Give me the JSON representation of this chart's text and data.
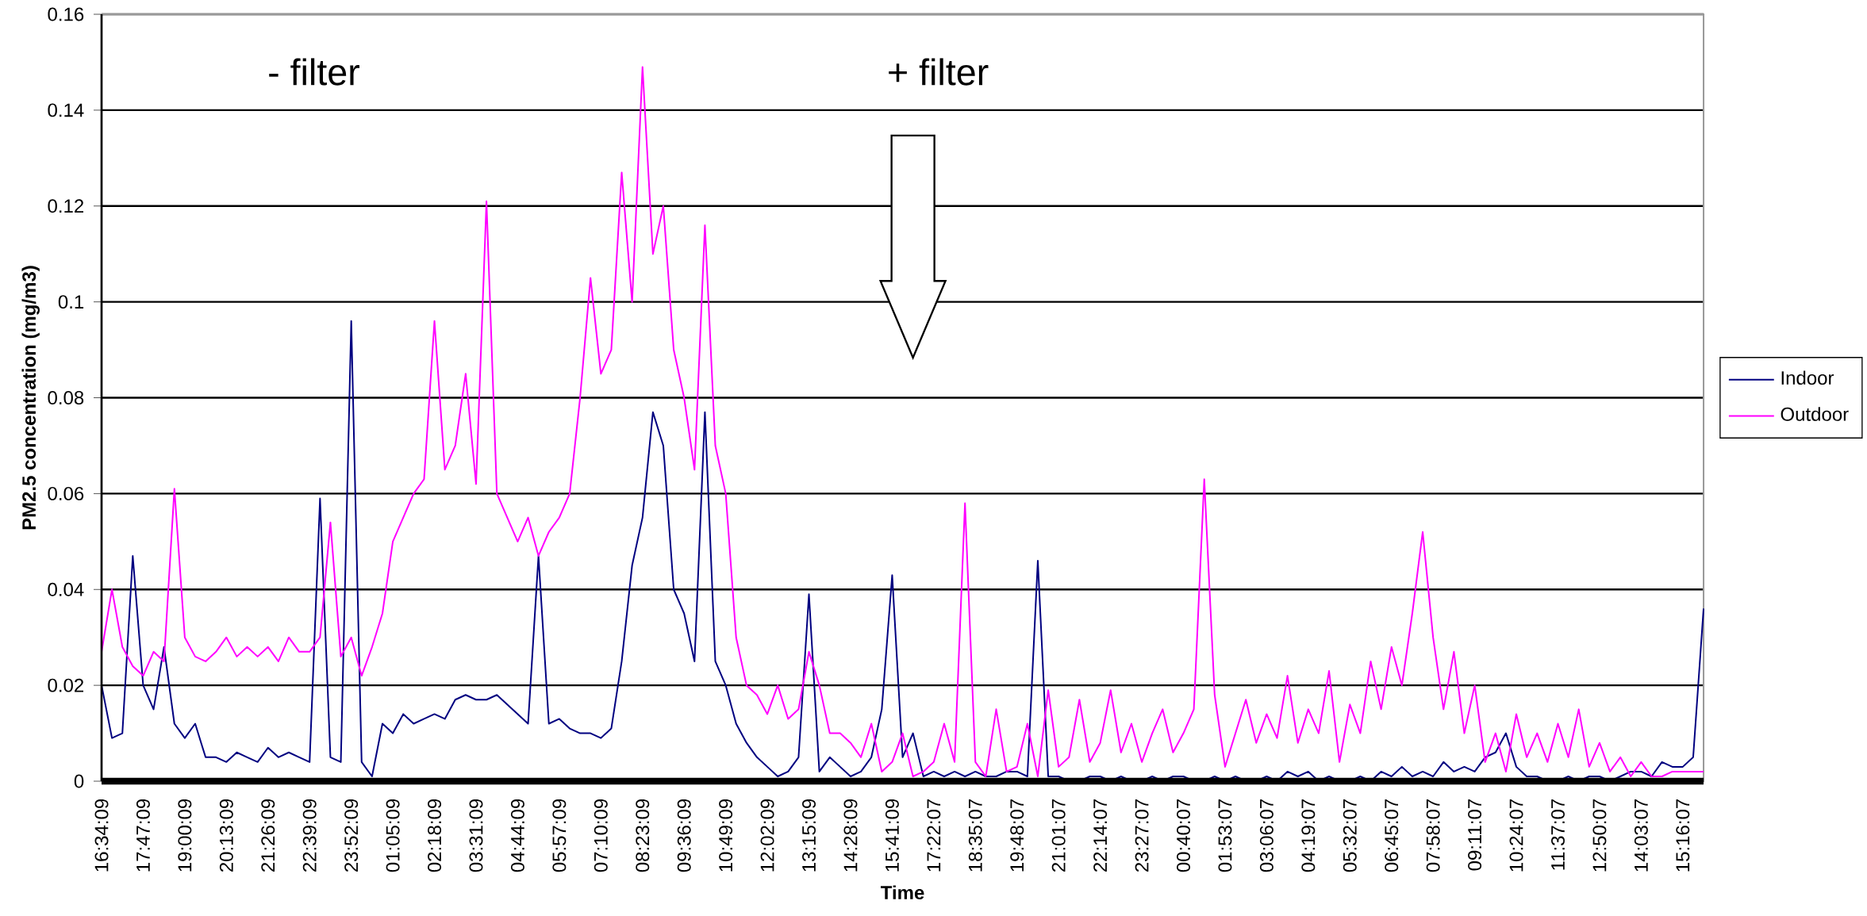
{
  "chart_data": {
    "type": "line",
    "xlabel": "Time",
    "ylabel": "PM2.5 concentration (mg/m3)",
    "annotations": [
      "- filter",
      "+ filter"
    ],
    "ylim": [
      0,
      0.16
    ],
    "yticks": [
      0,
      0.02,
      0.04,
      0.06,
      0.08,
      0.1,
      0.12,
      0.14,
      0.16
    ],
    "categories": [
      "16:34:09",
      null,
      null,
      null,
      "17:47:09",
      null,
      null,
      null,
      "19:00:09",
      null,
      null,
      null,
      "20:13:09",
      null,
      null,
      null,
      "21:26:09",
      null,
      null,
      null,
      "22:39:09",
      null,
      null,
      null,
      "23:52:09",
      null,
      null,
      null,
      "01:05:09",
      null,
      null,
      null,
      "02:18:09",
      null,
      null,
      null,
      "03:31:09",
      null,
      null,
      null,
      "04:44:09",
      null,
      null,
      null,
      "05:57:09",
      null,
      null,
      null,
      "07:10:09",
      null,
      null,
      null,
      "08:23:09",
      null,
      null,
      null,
      "09:36:09",
      null,
      null,
      null,
      "10:49:09",
      null,
      null,
      null,
      "12:02:09",
      null,
      null,
      null,
      "13:15:09",
      null,
      null,
      null,
      "14:28:09",
      null,
      null,
      null,
      "15:41:09",
      null,
      null,
      null,
      "17:22:07",
      null,
      null,
      null,
      "18:35:07",
      null,
      null,
      null,
      "19:48:07",
      null,
      null,
      null,
      "21:01:07",
      null,
      null,
      null,
      "22:14:07",
      null,
      null,
      null,
      "23:27:07",
      null,
      null,
      null,
      "00:40:07",
      null,
      null,
      null,
      "01:53:07",
      null,
      null,
      null,
      "03:06:07",
      null,
      null,
      null,
      "04:19:07",
      null,
      null,
      null,
      "05:32:07",
      null,
      null,
      null,
      "06:45:07",
      null,
      null,
      null,
      "07:58:07",
      null,
      null,
      null,
      "09:11:07",
      null,
      null,
      null,
      "10:24:07",
      null,
      null,
      null,
      "11:37:07",
      null,
      null,
      null,
      "12:50:07",
      null,
      null,
      null,
      "14:03:07",
      null,
      null,
      null,
      "15:16:07",
      null,
      null
    ],
    "grid": "y",
    "legend": "right",
    "series": [
      {
        "name": "Indoor",
        "color": "#000080",
        "values": [
          0.02,
          0.009,
          0.01,
          0.047,
          0.02,
          0.015,
          0.028,
          0.012,
          0.009,
          0.012,
          0.005,
          0.005,
          0.004,
          0.006,
          0.005,
          0.004,
          0.007,
          0.005,
          0.006,
          0.005,
          0.004,
          0.059,
          0.005,
          0.004,
          0.096,
          0.004,
          0.001,
          0.012,
          0.01,
          0.014,
          0.012,
          0.013,
          0.014,
          0.013,
          0.017,
          0.018,
          0.017,
          0.017,
          0.018,
          0.016,
          0.014,
          0.012,
          0.047,
          0.012,
          0.013,
          0.011,
          0.01,
          0.01,
          0.009,
          0.011,
          0.025,
          0.045,
          0.055,
          0.077,
          0.07,
          0.04,
          0.035,
          0.025,
          0.077,
          0.025,
          0.02,
          0.012,
          0.008,
          0.005,
          0.003,
          0.001,
          0.002,
          0.005,
          0.039,
          0.002,
          0.005,
          0.003,
          0.001,
          0.002,
          0.005,
          0.015,
          0.043,
          0.005,
          0.01,
          0.001,
          0.002,
          0.001,
          0.002,
          0.001,
          0.002,
          0.001,
          0.001,
          0.002,
          0.002,
          0.001,
          0.046,
          0.001,
          0.001,
          0,
          0,
          0.001,
          0.001,
          0,
          0.001,
          0,
          0,
          0.001,
          0,
          0.001,
          0.001,
          0,
          0,
          0.001,
          0,
          0.001,
          0,
          0,
          0.001,
          0,
          0.002,
          0.001,
          0.002,
          0,
          0.001,
          0,
          0,
          0.001,
          0,
          0.002,
          0.001,
          0.003,
          0.001,
          0.002,
          0.001,
          0.004,
          0.002,
          0.003,
          0.002,
          0.005,
          0.006,
          0.01,
          0.003,
          0.001,
          0.001,
          0,
          0,
          0.001,
          0,
          0.001,
          0.001,
          0,
          0.001,
          0.002,
          0.002,
          0.001,
          0.004,
          0.003,
          0.003,
          0.005,
          0.036
        ]
      },
      {
        "name": "Outdoor",
        "color": "#ff00ff",
        "values": [
          0.027,
          0.04,
          0.028,
          0.024,
          0.022,
          0.027,
          0.025,
          0.061,
          0.03,
          0.026,
          0.025,
          0.027,
          0.03,
          0.026,
          0.028,
          0.026,
          0.028,
          0.025,
          0.03,
          0.027,
          0.027,
          0.03,
          0.054,
          0.026,
          0.03,
          0.022,
          0.028,
          0.035,
          0.05,
          0.055,
          0.06,
          0.063,
          0.096,
          0.065,
          0.07,
          0.085,
          0.062,
          0.121,
          0.06,
          0.055,
          0.05,
          0.055,
          0.047,
          0.052,
          0.055,
          0.06,
          0.08,
          0.105,
          0.085,
          0.09,
          0.127,
          0.1,
          0.149,
          0.11,
          0.12,
          0.09,
          0.08,
          0.065,
          0.116,
          0.07,
          0.06,
          0.03,
          0.02,
          0.018,
          0.014,
          0.02,
          0.013,
          0.015,
          0.027,
          0.02,
          0.01,
          0.01,
          0.008,
          0.005,
          0.012,
          0.002,
          0.004,
          0.01,
          0.001,
          0.002,
          0.004,
          0.012,
          0.004,
          0.058,
          0.004,
          0.001,
          0.015,
          0.002,
          0.003,
          0.012,
          0.001,
          0.019,
          0.003,
          0.005,
          0.017,
          0.004,
          0.008,
          0.019,
          0.006,
          0.012,
          0.004,
          0.01,
          0.015,
          0.006,
          0.01,
          0.015,
          0.063,
          0.018,
          0.003,
          0.01,
          0.017,
          0.008,
          0.014,
          0.009,
          0.022,
          0.008,
          0.015,
          0.01,
          0.023,
          0.004,
          0.016,
          0.01,
          0.025,
          0.015,
          0.028,
          0.02,
          0.035,
          0.052,
          0.03,
          0.015,
          0.027,
          0.01,
          0.02,
          0.004,
          0.01,
          0.002,
          0.014,
          0.005,
          0.01,
          0.004,
          0.012,
          0.005,
          0.015,
          0.003,
          0.008,
          0.002,
          0.005,
          0.001,
          0.004,
          0.001,
          0.001,
          0.002,
          0.002,
          0.002,
          0.002
        ]
      }
    ]
  }
}
